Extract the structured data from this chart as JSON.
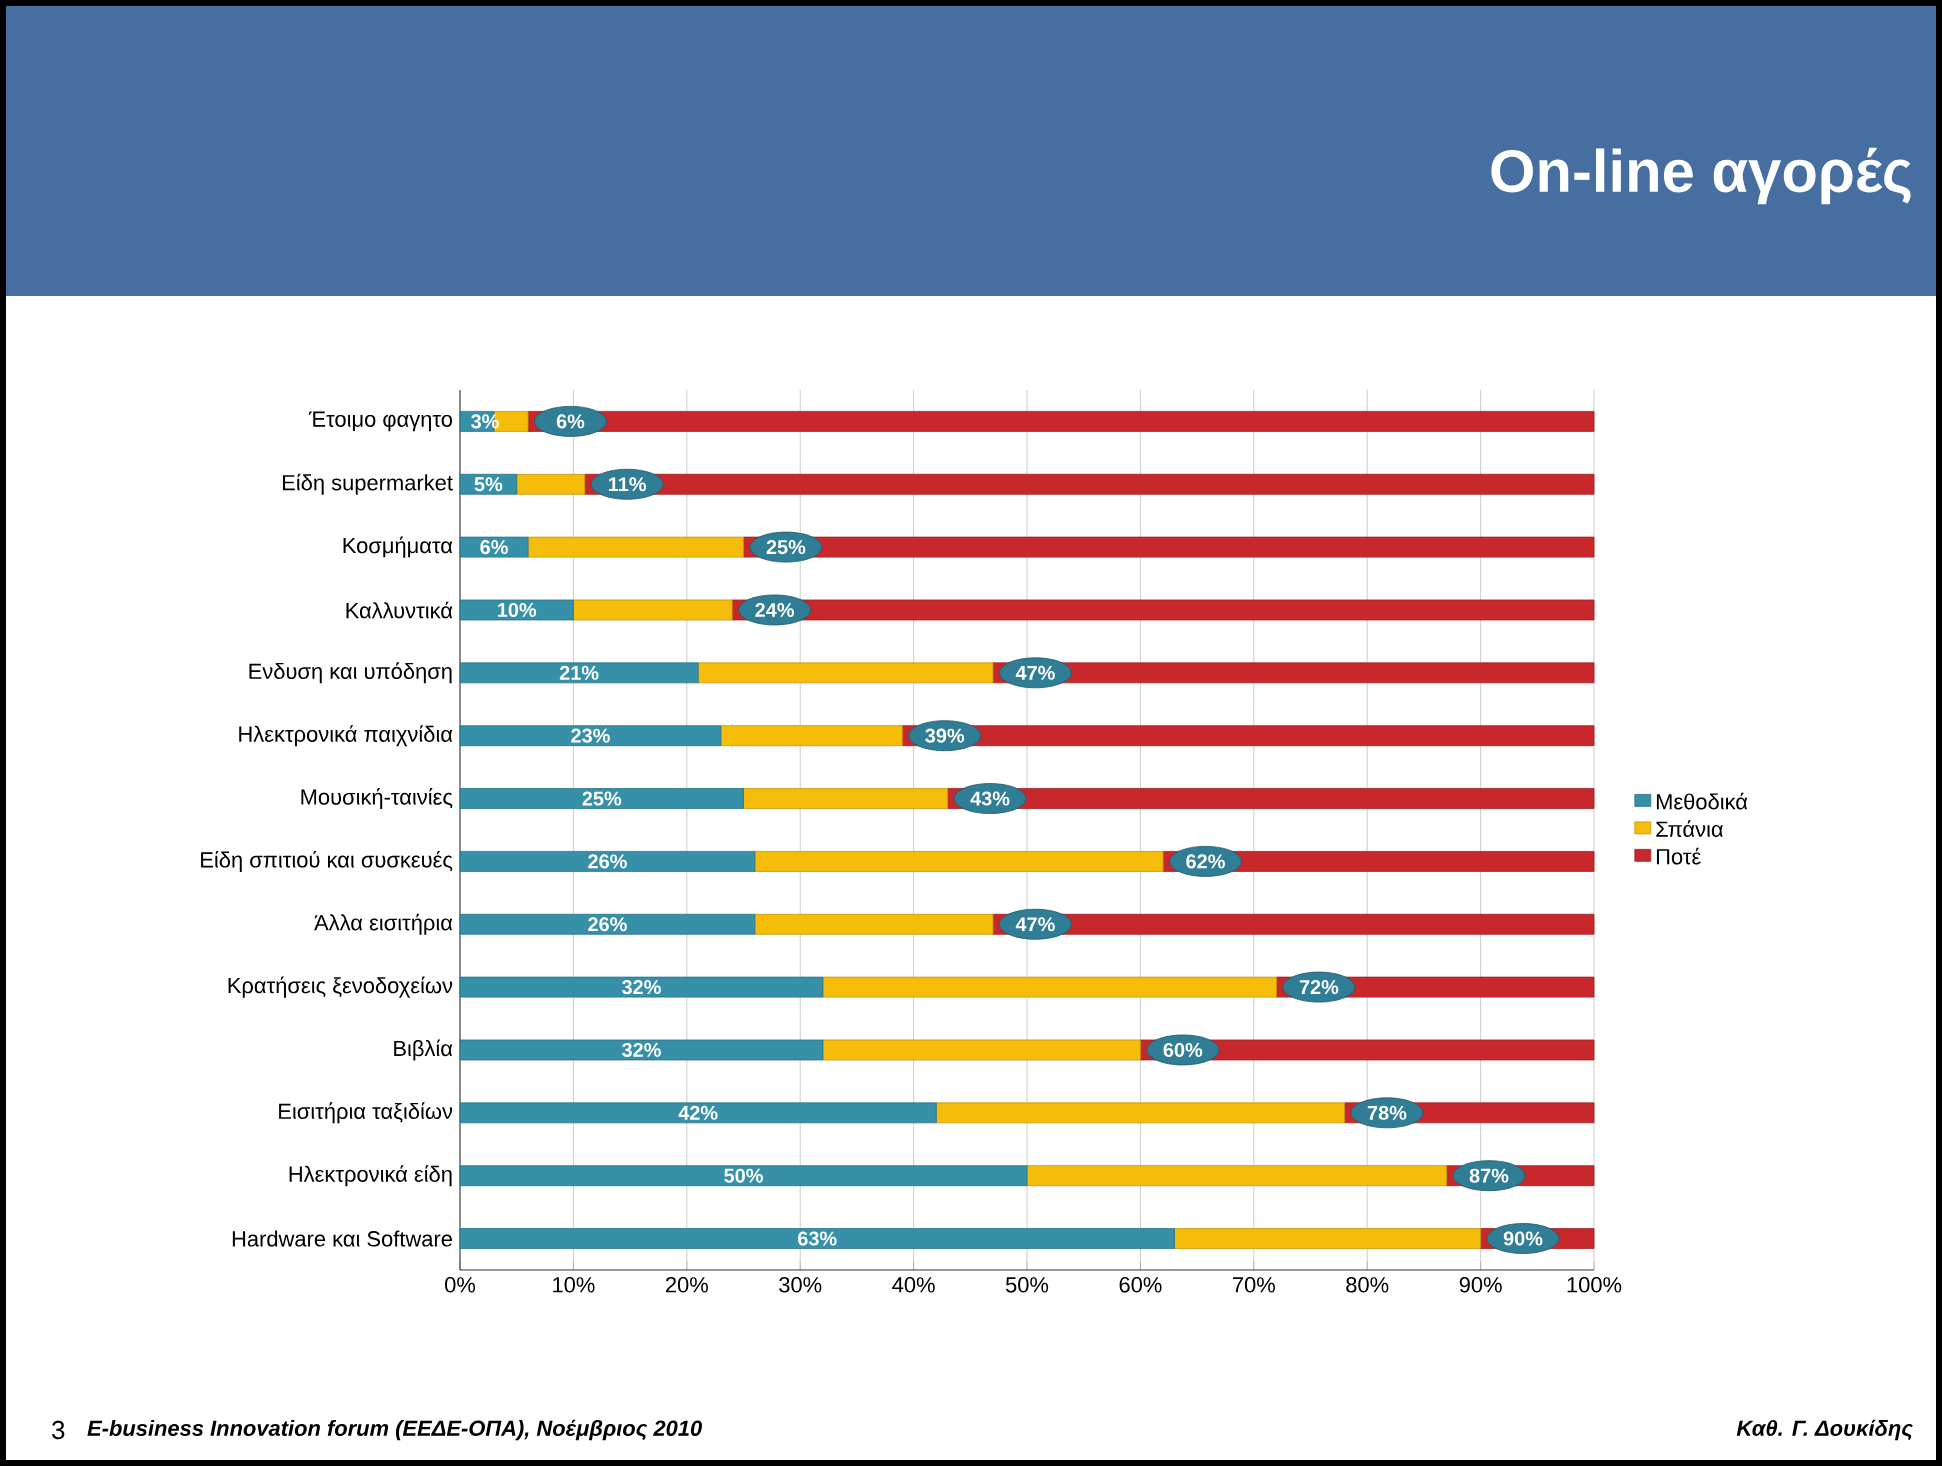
{
  "chart_data": {
    "type": "bar",
    "orientation": "horizontal",
    "stacked": true,
    "title": "On-line αγορές",
    "categories": [
      "Έτοιμο φαγητο",
      "Είδη supermarket",
      "Κοσμήματα",
      "Καλλυντικά",
      "Ενδυση και υπόδηση",
      "Ηλεκτρονικά παιχνίδια",
      "Μουσική-ταινίες",
      "Είδη σπιτιού και συσκευές",
      "Άλλα εισιτήρια",
      "Κρατήσεις ξενοδοχείων",
      "Βιβλία",
      "Εισιτήρια ταξιδίων",
      "Ηλεκτρονικά είδη",
      "Hardware και Software"
    ],
    "series": [
      {
        "name": "Μεθοδικά",
        "color": "#3590a8",
        "values": [
          3,
          5,
          6,
          10,
          21,
          23,
          25,
          26,
          26,
          32,
          32,
          42,
          50,
          63
        ],
        "value_labels": [
          "3%",
          "5%",
          "6%",
          "10%",
          "21%",
          "23%",
          "25%",
          "26%",
          "26%",
          "32%",
          "32%",
          "42%",
          "50%",
          "63%"
        ]
      },
      {
        "name": "Σπάνια",
        "color": "#f5bd0a",
        "values": [
          3,
          6,
          19,
          14,
          26,
          16,
          18,
          36,
          21,
          40,
          28,
          36,
          37,
          27
        ]
      },
      {
        "name": "Ποτέ",
        "color": "#c8282c",
        "values": [
          94,
          89,
          75,
          76,
          53,
          61,
          57,
          38,
          53,
          28,
          40,
          22,
          13,
          10
        ]
      }
    ],
    "xlim": [
      0,
      100
    ],
    "xticks": [
      {
        "value": 0,
        "label": "0%"
      },
      {
        "value": 10,
        "label": "10%"
      },
      {
        "value": 20,
        "label": "20%"
      },
      {
        "value": 30,
        "label": "30%"
      },
      {
        "value": 40,
        "label": "40%"
      },
      {
        "value": 50,
        "label": "50%"
      },
      {
        "value": 60,
        "label": "60%"
      },
      {
        "value": 70,
        "label": "70%"
      },
      {
        "value": 80,
        "label": "80%"
      },
      {
        "value": 90,
        "label": "90%"
      },
      {
        "value": 100,
        "label": "100%"
      }
    ],
    "grid": "x",
    "legend": "right",
    "annotations": [
      "3",
      "E-business Innovation forum (ΕΕΔΕ-ΟΠΑ), Νοέμβριος 2010",
      "Καθ. Γ. Δουκίδης",
      {
        "text": "6%",
        "x": 6,
        "y": "Έτοιμο φαγητο"
      },
      {
        "text": "11%",
        "x": 11,
        "y": "Είδη supermarket"
      },
      {
        "text": "25%",
        "x": 25,
        "y": "Κοσμήματα"
      },
      {
        "text": "24%",
        "x": 24,
        "y": "Καλλυντικά"
      },
      {
        "text": "47%",
        "x": 47,
        "y": "Ενδυση και υπόδηση"
      },
      {
        "text": "39%",
        "x": 39,
        "y": "Ηλεκτρονικά παιχνίδια"
      },
      {
        "text": "43%",
        "x": 43,
        "y": "Μουσική-ταινίες"
      },
      {
        "text": "62%",
        "x": 62,
        "y": "Είδη σπιτιού και συσκευές"
      },
      {
        "text": "47%",
        "x": 47,
        "y": "Άλλα εισιτήρια"
      },
      {
        "text": "72%",
        "x": 72,
        "y": "Κρατήσεις ξενοδοχείων"
      },
      {
        "text": "60%",
        "x": 60,
        "y": "Βιβλία"
      },
      {
        "text": "78%",
        "x": 78,
        "y": "Εισιτήρια ταξιδίων"
      },
      {
        "text": "87%",
        "x": 87,
        "y": "Ηλεκτρονικά είδη"
      },
      {
        "text": "90%",
        "x": 90,
        "y": "Hardware και Software"
      }
    ]
  }
}
